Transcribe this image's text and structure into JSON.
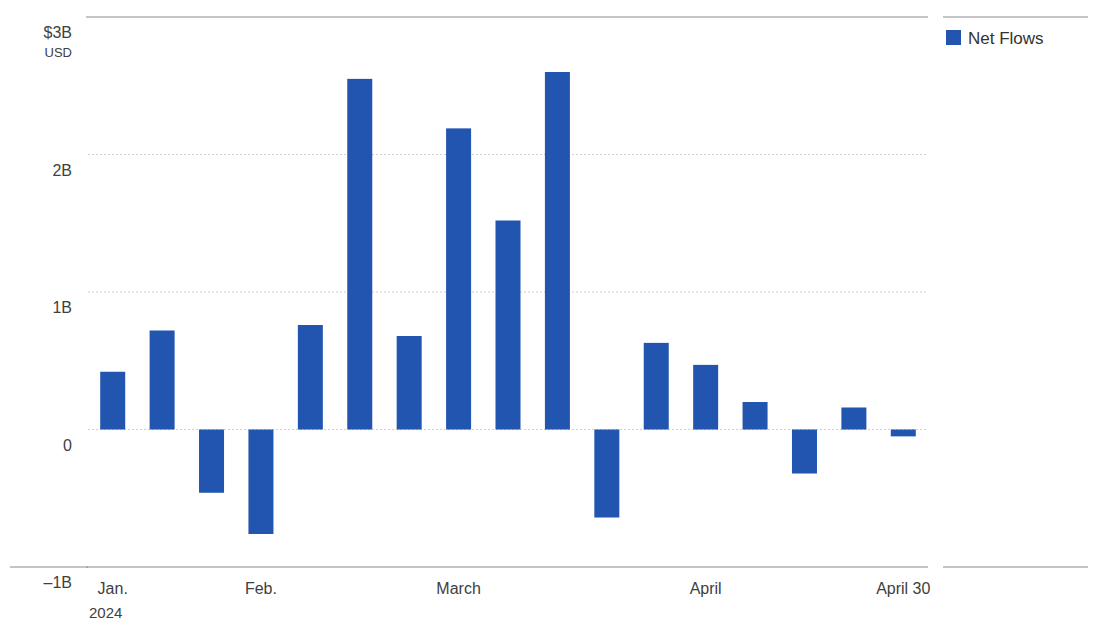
{
  "chart_data": {
    "type": "bar",
    "categories": [
      "Jan.",
      null,
      null,
      "Feb.",
      null,
      null,
      null,
      "March",
      null,
      null,
      null,
      null,
      "April",
      null,
      null,
      null,
      "April 30"
    ],
    "series": [
      {
        "name": "Net Flows",
        "color": "#2155b0",
        "values": [
          0.42,
          0.72,
          -0.46,
          -0.76,
          0.76,
          2.55,
          0.68,
          2.19,
          1.52,
          2.6,
          -0.64,
          0.63,
          0.47,
          0.2,
          -0.32,
          0.16,
          -0.05
        ]
      }
    ],
    "y_label": "USD",
    "annotations": [
      "2024"
    ],
    "ylim": [
      -1,
      3
    ],
    "yticks": [
      {
        "value": -1,
        "label": "–1B"
      },
      0,
      {
        "value": 1,
        "label": "1B"
      },
      {
        "value": 2,
        "label": "2B"
      },
      {
        "value": 3,
        "label": "$3B"
      }
    ],
    "grid": true,
    "legend": "top-right"
  }
}
